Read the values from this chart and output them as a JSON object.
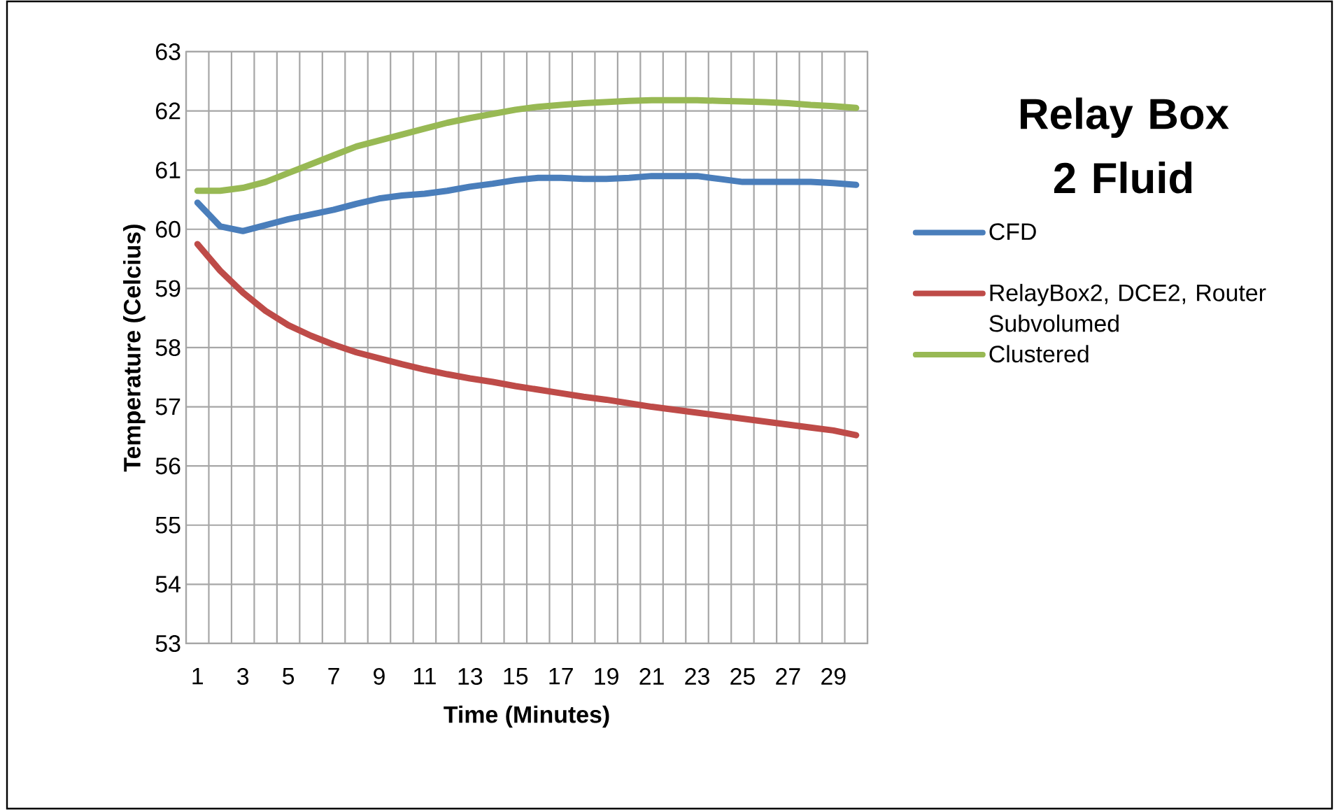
{
  "chart_data": {
    "type": "line",
    "title": "Relay Box 2 Fluid",
    "xlabel": "Time (Minutes)",
    "ylabel": "Temperature (Celcius)",
    "categories": [
      "1",
      null,
      "3",
      null,
      "5",
      null,
      "7",
      null,
      "9",
      null,
      "11",
      null,
      "13",
      null,
      "15",
      null,
      "17",
      null,
      "19",
      null,
      "21",
      null,
      "23",
      null,
      "25",
      null,
      "27",
      null,
      "29",
      null
    ],
    "series": [
      {
        "name": "CFD",
        "color": "#4a7ebb",
        "values": [
          60.45,
          60.05,
          59.97,
          60.07,
          60.17,
          60.25,
          60.33,
          60.43,
          60.52,
          60.57,
          60.6,
          60.65,
          60.72,
          60.77,
          60.83,
          60.87,
          60.87,
          60.85,
          60.85,
          60.87,
          60.9,
          60.9,
          60.9,
          60.85,
          60.8,
          60.8,
          60.8,
          60.8,
          60.78,
          60.75
        ]
      },
      {
        "name": "RelayBox2, DCE2, Router Subvolumed",
        "color": "#be4b48",
        "values": [
          59.75,
          59.3,
          58.93,
          58.62,
          58.38,
          58.2,
          58.05,
          57.92,
          57.82,
          57.72,
          57.63,
          57.55,
          57.48,
          57.42,
          57.35,
          57.29,
          57.23,
          57.17,
          57.12,
          57.06,
          57.0,
          56.95,
          56.9,
          56.85,
          56.8,
          56.75,
          56.7,
          56.65,
          56.6,
          56.52
        ]
      },
      {
        "name": "Clustered",
        "color": "#98b954",
        "values": [
          60.65,
          60.65,
          60.7,
          60.8,
          60.95,
          61.1,
          61.25,
          61.4,
          61.5,
          61.6,
          61.7,
          61.8,
          61.88,
          61.95,
          62.02,
          62.07,
          62.1,
          62.13,
          62.15,
          62.17,
          62.18,
          62.18,
          62.18,
          62.17,
          62.16,
          62.15,
          62.13,
          62.1,
          62.08,
          62.05
        ]
      }
    ],
    "ylim": [
      53,
      63
    ],
    "yticks": [
      53,
      54,
      55,
      56,
      57,
      58,
      59,
      60,
      61,
      62,
      63
    ],
    "grid": true,
    "legend": "right",
    "marker": "none",
    "line_style": "solid"
  }
}
